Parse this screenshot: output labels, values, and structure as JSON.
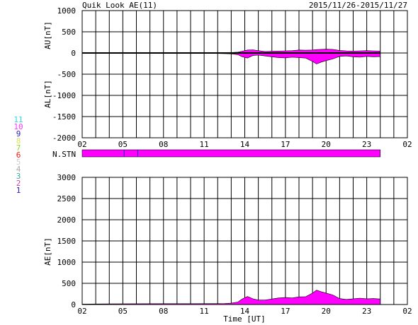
{
  "header": {
    "title": "Quik Look AE(11)",
    "date_range": "2015/11/26-2015/11/27"
  },
  "station_legend": [
    {
      "label": "11",
      "color": "#22dddd"
    },
    {
      "label": "10",
      "color": "#ff33ff"
    },
    {
      "label": "9",
      "color": "#2222cc"
    },
    {
      "label": "8",
      "color": "#dddd55"
    },
    {
      "label": "7",
      "color": "#88dd22"
    },
    {
      "label": "6",
      "color": "#ff1111"
    },
    {
      "label": "5",
      "color": "#cccccc"
    },
    {
      "label": "4",
      "color": "#aaaaaa"
    },
    {
      "label": "3",
      "color": "#33aa99"
    },
    {
      "label": "2",
      "color": "#cc44aa"
    },
    {
      "label": "1",
      "color": "#2222cc"
    }
  ],
  "chart_data": [
    {
      "type": "area",
      "xlabel": "",
      "xlim": [
        2,
        26
      ],
      "x_tick_labels": [
        "02",
        "05",
        "08",
        "11",
        "14",
        "17",
        "20",
        "23",
        "02"
      ],
      "ylim": [
        -2000,
        1000
      ],
      "y_ticks": [
        1000,
        500,
        0,
        -500,
        -1000,
        -1500,
        -2000
      ],
      "ylabel_upper": "AU[nT]",
      "ylabel_lower": "AL[nT]",
      "grid": true,
      "fill_color": "#ff00ff",
      "series": [
        {
          "x": [
            2,
            4,
            6,
            8,
            10,
            12,
            12.5,
            13,
            13.5,
            13.8,
            14.2,
            14.6,
            15,
            15.5,
            16,
            16.5,
            17,
            17.5,
            18,
            18.5,
            19,
            19.3,
            19.6,
            20,
            20.5,
            21,
            21.5,
            22,
            22.5,
            23,
            23.5,
            24
          ],
          "values": [
            5,
            8,
            8,
            10,
            10,
            10,
            10,
            12,
            20,
            40,
            70,
            75,
            55,
            35,
            40,
            45,
            50,
            55,
            70,
            65,
            70,
            80,
            85,
            90,
            85,
            60,
            50,
            45,
            50,
            55,
            50,
            45
          ]
        },
        {
          "x": [
            2,
            4,
            6,
            8,
            10,
            12,
            12.5,
            13,
            13.5,
            13.8,
            14.2,
            14.6,
            15,
            15.5,
            16,
            16.5,
            17,
            17.5,
            18,
            18.5,
            19,
            19.3,
            19.6,
            20,
            20.5,
            21,
            21.5,
            22,
            22.5,
            23,
            23.5,
            24
          ],
          "values": [
            -5,
            -8,
            -10,
            -10,
            -10,
            -12,
            -15,
            -20,
            -40,
            -90,
            -120,
            -60,
            -50,
            -70,
            -90,
            -110,
            -115,
            -100,
            -110,
            -120,
            -200,
            -260,
            -220,
            -180,
            -140,
            -80,
            -70,
            -90,
            -100,
            -80,
            -90,
            -85
          ]
        }
      ]
    },
    {
      "type": "bar",
      "label": "N.STN",
      "xlim": [
        2,
        26
      ],
      "fill_color": "#ff00ff",
      "start": 2,
      "end": 24,
      "markers": [
        5.1,
        6.1
      ]
    },
    {
      "type": "area",
      "xlabel": "Time [UT]",
      "xlim": [
        2,
        26
      ],
      "x_tick_labels": [
        "02",
        "05",
        "08",
        "11",
        "14",
        "17",
        "20",
        "23",
        "02"
      ],
      "ylim": [
        0,
        3000
      ],
      "y_ticks": [
        3000,
        2500,
        2000,
        1500,
        1000,
        500,
        0
      ],
      "ylabel": "AE[nT]",
      "grid": true,
      "fill_color": "#ff00ff",
      "series": [
        {
          "x": [
            2,
            4,
            6,
            8,
            10,
            12,
            12.5,
            13,
            13.5,
            13.8,
            14.2,
            14.6,
            15,
            15.5,
            16,
            16.5,
            17,
            17.5,
            18,
            18.5,
            19,
            19.3,
            19.6,
            20,
            20.5,
            21,
            21.5,
            22,
            22.5,
            23,
            23.5,
            24
          ],
          "values": [
            10,
            15,
            18,
            20,
            20,
            22,
            25,
            32,
            60,
            130,
            190,
            135,
            105,
            105,
            130,
            155,
            165,
            155,
            180,
            185,
            270,
            340,
            305,
            270,
            225,
            140,
            120,
            135,
            150,
            135,
            140,
            130
          ]
        }
      ]
    }
  ]
}
